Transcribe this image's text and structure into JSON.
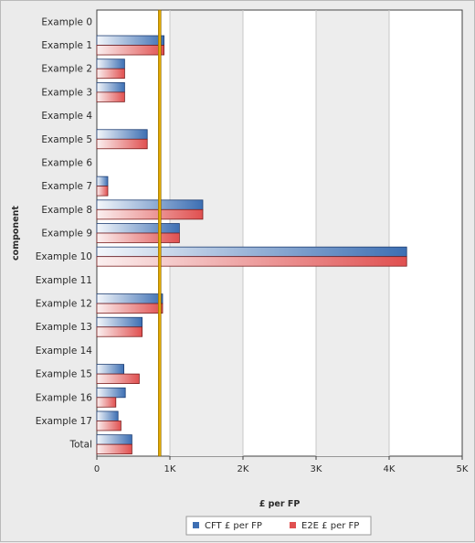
{
  "chart_data": {
    "type": "bar",
    "orientation": "horizontal",
    "xlabel": "£ per FP",
    "ylabel": "component",
    "xlim": [
      0,
      5000
    ],
    "x_ticks": [
      "0",
      "1K",
      "2K",
      "3K",
      "4K",
      "5K"
    ],
    "x_tick_values": [
      0,
      1000,
      2000,
      3000,
      4000,
      5000
    ],
    "categories": [
      "Example 0",
      "Example 1",
      "Example 2",
      "Example 3",
      "Example 4",
      "Example 5",
      "Example 6",
      "Example 7",
      "Example 8",
      "Example 9",
      "Example 10",
      "Example 11",
      "Example 12",
      "Example 13",
      "Example 14",
      "Example 15",
      "Example 16",
      "Example 17",
      "Total"
    ],
    "series": [
      {
        "name": "CFT £ per FP",
        "color": "#3d6fb3",
        "values": [
          0,
          920,
          380,
          380,
          0,
          690,
          0,
          150,
          1450,
          1130,
          4240,
          0,
          900,
          620,
          0,
          370,
          390,
          290,
          480
        ]
      },
      {
        "name": "E2E £ per FP",
        "color": "#e05050",
        "values": [
          0,
          920,
          380,
          380,
          0,
          690,
          0,
          150,
          1450,
          1130,
          4240,
          0,
          900,
          620,
          0,
          580,
          260,
          330,
          480
        ]
      }
    ],
    "reference_line": {
      "value": 860,
      "color": "#e0a800"
    },
    "grid": true,
    "legend_position": "bottom"
  }
}
